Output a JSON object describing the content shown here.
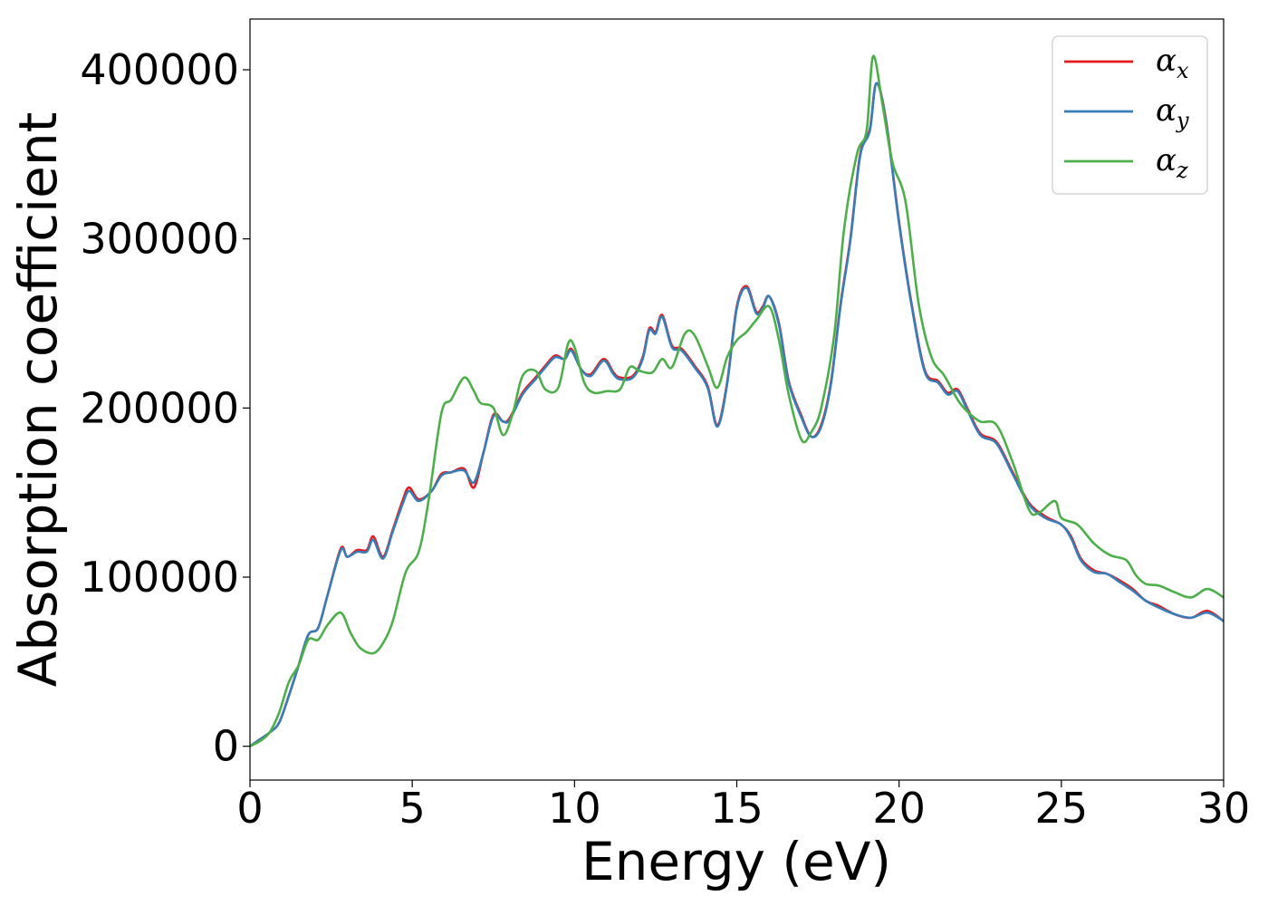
{
  "chart_data": {
    "type": "line",
    "title": "",
    "xlabel": "Energy (eV)",
    "ylabel": "Absorption coefficient",
    "xlim": [
      0,
      30
    ],
    "ylim": [
      -20000,
      430000
    ],
    "xticks": [
      0,
      5,
      10,
      15,
      20,
      25,
      30
    ],
    "xtick_labels": [
      "0",
      "5",
      "10",
      "15",
      "20",
      "25",
      "30"
    ],
    "yticks": [
      0,
      100000,
      200000,
      300000,
      400000
    ],
    "ytick_labels": [
      "0",
      "100000",
      "200000",
      "300000",
      "400000"
    ],
    "grid": false,
    "legend_position": "top-right",
    "series": [
      {
        "name": "α_x",
        "legend_base": "α",
        "legend_sub": "x",
        "color": "#e41a1c",
        "points": [
          [
            0,
            0
          ],
          [
            0.3,
            4000
          ],
          [
            0.6,
            8000
          ],
          [
            0.9,
            14000
          ],
          [
            1.2,
            30000
          ],
          [
            1.5,
            48000
          ],
          [
            1.8,
            66000
          ],
          [
            2.1,
            70000
          ],
          [
            2.4,
            90000
          ],
          [
            2.8,
            117000
          ],
          [
            3.0,
            112000
          ],
          [
            3.3,
            116000
          ],
          [
            3.6,
            116000
          ],
          [
            3.8,
            124000
          ],
          [
            4.1,
            112000
          ],
          [
            4.4,
            128000
          ],
          [
            4.7,
            145000
          ],
          [
            4.9,
            153000
          ],
          [
            5.2,
            146000
          ],
          [
            5.6,
            151000
          ],
          [
            5.9,
            161000
          ],
          [
            6.2,
            162000
          ],
          [
            6.6,
            164000
          ],
          [
            6.9,
            153000
          ],
          [
            7.2,
            174000
          ],
          [
            7.5,
            196000
          ],
          [
            7.8,
            192000
          ],
          [
            8.0,
            194000
          ],
          [
            8.4,
            209000
          ],
          [
            8.8,
            218000
          ],
          [
            9.1,
            225000
          ],
          [
            9.4,
            231000
          ],
          [
            9.7,
            229000
          ],
          [
            9.9,
            235000
          ],
          [
            10.2,
            223000
          ],
          [
            10.5,
            220000
          ],
          [
            10.9,
            229000
          ],
          [
            11.2,
            221000
          ],
          [
            11.4,
            218000
          ],
          [
            11.8,
            219000
          ],
          [
            12.1,
            230000
          ],
          [
            12.3,
            247000
          ],
          [
            12.5,
            245000
          ],
          [
            12.7,
            255000
          ],
          [
            13.0,
            237000
          ],
          [
            13.3,
            235000
          ],
          [
            13.7,
            225000
          ],
          [
            14.1,
            213000
          ],
          [
            14.4,
            190000
          ],
          [
            14.7,
            215000
          ],
          [
            15.0,
            260000
          ],
          [
            15.3,
            272000
          ],
          [
            15.6,
            257000
          ],
          [
            15.8,
            260000
          ],
          [
            16.0,
            266000
          ],
          [
            16.3,
            250000
          ],
          [
            16.6,
            216000
          ],
          [
            17.0,
            195000
          ],
          [
            17.3,
            183000
          ],
          [
            17.6,
            190000
          ],
          [
            17.9,
            215000
          ],
          [
            18.2,
            262000
          ],
          [
            18.5,
            300000
          ],
          [
            18.8,
            350000
          ],
          [
            19.1,
            365000
          ],
          [
            19.3,
            392000
          ],
          [
            19.6,
            370000
          ],
          [
            20.0,
            310000
          ],
          [
            20.4,
            260000
          ],
          [
            20.8,
            222000
          ],
          [
            21.2,
            216000
          ],
          [
            21.5,
            209000
          ],
          [
            21.8,
            211000
          ],
          [
            22.1,
            200000
          ],
          [
            22.5,
            185000
          ],
          [
            23.0,
            180000
          ],
          [
            23.5,
            162000
          ],
          [
            24.0,
            144000
          ],
          [
            24.5,
            136000
          ],
          [
            25.0,
            131000
          ],
          [
            25.3,
            124000
          ],
          [
            25.6,
            111000
          ],
          [
            26.0,
            104000
          ],
          [
            26.4,
            102000
          ],
          [
            26.8,
            98000
          ],
          [
            27.2,
            93000
          ],
          [
            27.6,
            86000
          ],
          [
            28.0,
            83000
          ],
          [
            28.5,
            78000
          ],
          [
            29.0,
            76000
          ],
          [
            29.5,
            80000
          ],
          [
            30.0,
            74000
          ]
        ]
      },
      {
        "name": "α_y",
        "legend_base": "α",
        "legend_sub": "y",
        "color": "#377eb8",
        "points": [
          [
            0,
            0
          ],
          [
            0.3,
            4000
          ],
          [
            0.6,
            8000
          ],
          [
            0.9,
            14000
          ],
          [
            1.2,
            30000
          ],
          [
            1.5,
            48000
          ],
          [
            1.8,
            66000
          ],
          [
            2.1,
            70000
          ],
          [
            2.4,
            90000
          ],
          [
            2.8,
            116000
          ],
          [
            3.0,
            112000
          ],
          [
            3.3,
            115000
          ],
          [
            3.6,
            115000
          ],
          [
            3.8,
            122000
          ],
          [
            4.1,
            111000
          ],
          [
            4.4,
            127000
          ],
          [
            4.7,
            143000
          ],
          [
            4.9,
            151000
          ],
          [
            5.2,
            145000
          ],
          [
            5.6,
            151000
          ],
          [
            5.9,
            160000
          ],
          [
            6.2,
            162000
          ],
          [
            6.6,
            163000
          ],
          [
            6.9,
            156000
          ],
          [
            7.2,
            174000
          ],
          [
            7.5,
            195000
          ],
          [
            7.8,
            192000
          ],
          [
            8.0,
            193000
          ],
          [
            8.4,
            208000
          ],
          [
            8.8,
            217000
          ],
          [
            9.1,
            224000
          ],
          [
            9.4,
            230000
          ],
          [
            9.7,
            229000
          ],
          [
            9.9,
            234000
          ],
          [
            10.2,
            223000
          ],
          [
            10.5,
            219000
          ],
          [
            10.9,
            228000
          ],
          [
            11.2,
            220000
          ],
          [
            11.4,
            217000
          ],
          [
            11.8,
            218000
          ],
          [
            12.1,
            229000
          ],
          [
            12.3,
            246000
          ],
          [
            12.5,
            244000
          ],
          [
            12.7,
            254000
          ],
          [
            13.0,
            236000
          ],
          [
            13.3,
            234000
          ],
          [
            13.7,
            224000
          ],
          [
            14.1,
            212000
          ],
          [
            14.4,
            189000
          ],
          [
            14.7,
            214000
          ],
          [
            15.0,
            259000
          ],
          [
            15.3,
            271000
          ],
          [
            15.6,
            256000
          ],
          [
            15.8,
            259000
          ],
          [
            16.0,
            266000
          ],
          [
            16.3,
            249000
          ],
          [
            16.6,
            215000
          ],
          [
            17.0,
            194000
          ],
          [
            17.3,
            183000
          ],
          [
            17.6,
            189000
          ],
          [
            17.9,
            214000
          ],
          [
            18.2,
            261000
          ],
          [
            18.5,
            299000
          ],
          [
            18.8,
            349000
          ],
          [
            19.1,
            364000
          ],
          [
            19.3,
            392000
          ],
          [
            19.6,
            369000
          ],
          [
            20.0,
            309000
          ],
          [
            20.4,
            259000
          ],
          [
            20.8,
            221000
          ],
          [
            21.2,
            215000
          ],
          [
            21.5,
            208000
          ],
          [
            21.8,
            210000
          ],
          [
            22.1,
            199000
          ],
          [
            22.5,
            184000
          ],
          [
            23.0,
            179000
          ],
          [
            23.5,
            161000
          ],
          [
            24.0,
            143000
          ],
          [
            24.5,
            135000
          ],
          [
            25.0,
            131000
          ],
          [
            25.3,
            123000
          ],
          [
            25.6,
            110000
          ],
          [
            26.0,
            103000
          ],
          [
            26.4,
            102000
          ],
          [
            26.8,
            97000
          ],
          [
            27.2,
            92000
          ],
          [
            27.6,
            86000
          ],
          [
            28.0,
            82000
          ],
          [
            28.5,
            78000
          ],
          [
            29.0,
            76000
          ],
          [
            29.5,
            79000
          ],
          [
            30.0,
            74000
          ]
        ]
      },
      {
        "name": "α_z",
        "legend_base": "α",
        "legend_sub": "z",
        "color": "#4daf4a",
        "points": [
          [
            0,
            0
          ],
          [
            0.3,
            3000
          ],
          [
            0.6,
            8000
          ],
          [
            0.9,
            20000
          ],
          [
            1.2,
            38000
          ],
          [
            1.5,
            48000
          ],
          [
            1.8,
            63000
          ],
          [
            2.1,
            63000
          ],
          [
            2.4,
            72000
          ],
          [
            2.8,
            79000
          ],
          [
            3.1,
            67000
          ],
          [
            3.4,
            58000
          ],
          [
            3.8,
            55000
          ],
          [
            4.1,
            61000
          ],
          [
            4.4,
            74000
          ],
          [
            4.8,
            103000
          ],
          [
            5.2,
            115000
          ],
          [
            5.5,
            145000
          ],
          [
            5.9,
            197000
          ],
          [
            6.2,
            205000
          ],
          [
            6.6,
            218000
          ],
          [
            6.9,
            210000
          ],
          [
            7.1,
            203000
          ],
          [
            7.5,
            200000
          ],
          [
            7.8,
            184000
          ],
          [
            8.1,
            197000
          ],
          [
            8.4,
            219000
          ],
          [
            8.8,
            222000
          ],
          [
            9.1,
            211000
          ],
          [
            9.5,
            212000
          ],
          [
            9.8,
            238000
          ],
          [
            10.0,
            236000
          ],
          [
            10.3,
            215000
          ],
          [
            10.6,
            209000
          ],
          [
            11.0,
            210000
          ],
          [
            11.4,
            211000
          ],
          [
            11.7,
            224000
          ],
          [
            12.0,
            222000
          ],
          [
            12.4,
            221000
          ],
          [
            12.7,
            229000
          ],
          [
            13.0,
            224000
          ],
          [
            13.4,
            244000
          ],
          [
            13.7,
            243000
          ],
          [
            14.1,
            225000
          ],
          [
            14.4,
            212000
          ],
          [
            14.7,
            230000
          ],
          [
            15.0,
            240000
          ],
          [
            15.3,
            245000
          ],
          [
            15.6,
            252000
          ],
          [
            16.0,
            260000
          ],
          [
            16.3,
            240000
          ],
          [
            16.6,
            208000
          ],
          [
            17.0,
            181000
          ],
          [
            17.3,
            186000
          ],
          [
            17.6,
            200000
          ],
          [
            18.0,
            243000
          ],
          [
            18.3,
            305000
          ],
          [
            18.7,
            350000
          ],
          [
            19.0,
            364000
          ],
          [
            19.2,
            408000
          ],
          [
            19.5,
            378000
          ],
          [
            19.8,
            345000
          ],
          [
            20.2,
            322000
          ],
          [
            20.6,
            262000
          ],
          [
            21.0,
            230000
          ],
          [
            21.4,
            219000
          ],
          [
            21.8,
            205000
          ],
          [
            22.1,
            198000
          ],
          [
            22.5,
            192000
          ],
          [
            23.0,
            190000
          ],
          [
            23.5,
            168000
          ],
          [
            24.0,
            140000
          ],
          [
            24.3,
            138000
          ],
          [
            24.8,
            145000
          ],
          [
            25.0,
            135000
          ],
          [
            25.5,
            131000
          ],
          [
            26.0,
            120000
          ],
          [
            26.5,
            113000
          ],
          [
            27.0,
            110000
          ],
          [
            27.3,
            101000
          ],
          [
            27.6,
            96000
          ],
          [
            28.0,
            95000
          ],
          [
            28.5,
            91000
          ],
          [
            29.0,
            88000
          ],
          [
            29.5,
            93000
          ],
          [
            30.0,
            88000
          ]
        ]
      }
    ]
  }
}
